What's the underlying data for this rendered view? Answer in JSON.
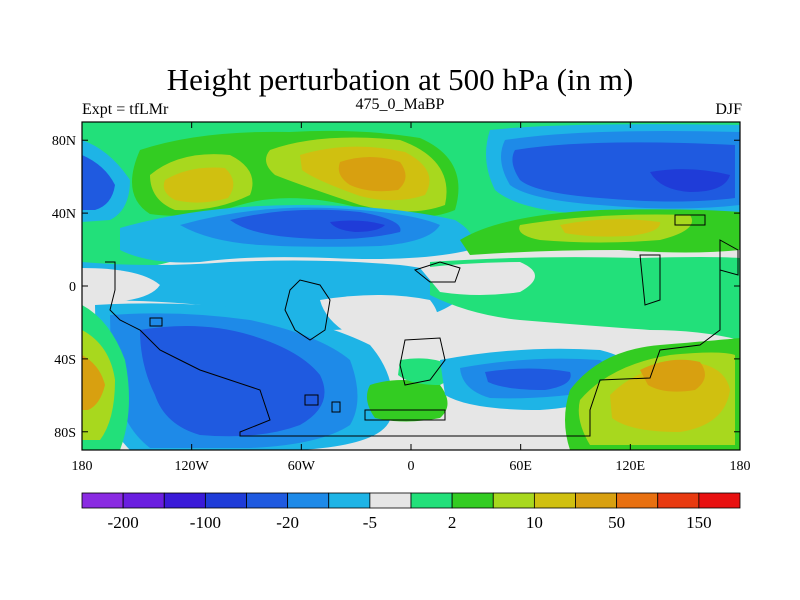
{
  "title": "Height perturbation at 500 hPa (in m)",
  "left_label": "Expt = tfLMr",
  "center_label": "475_0_MaBP",
  "right_label": "DJF",
  "map": {
    "lon_range": [
      -180,
      180
    ],
    "lat_range": [
      -90,
      90
    ],
    "xticks": [
      {
        "value": -180,
        "label": "180"
      },
      {
        "value": -120,
        "label": "120W"
      },
      {
        "value": -60,
        "label": "60W"
      },
      {
        "value": 0,
        "label": "0"
      },
      {
        "value": 60,
        "label": "60E"
      },
      {
        "value": 120,
        "label": "120E"
      },
      {
        "value": 180,
        "label": "180"
      }
    ],
    "yticks": [
      {
        "value": 80,
        "label": "80N"
      },
      {
        "value": 40,
        "label": "40N"
      },
      {
        "value": 0,
        "label": "0"
      },
      {
        "value": -40,
        "label": "40S"
      },
      {
        "value": -80,
        "label": "80S"
      }
    ]
  },
  "colorbar": {
    "colors": [
      "#8a2be2",
      "#6a1ee0",
      "#3a1ad8",
      "#1f3cd8",
      "#1f5ae0",
      "#1e8ae8",
      "#1eb4e6",
      "#e6e6e6",
      "#22e07a",
      "#33cc22",
      "#a8d81e",
      "#d0c010",
      "#d8a010",
      "#e87010",
      "#e83a10",
      "#e81010"
    ],
    "labels": [
      {
        "index": 1,
        "text": "-200"
      },
      {
        "index": 3,
        "text": "-100"
      },
      {
        "index": 5,
        "text": "-20"
      },
      {
        "index": 7,
        "text": "-5"
      },
      {
        "index": 9,
        "text": "2"
      },
      {
        "index": 11,
        "text": "10"
      },
      {
        "index": 13,
        "text": "50"
      },
      {
        "index": 15,
        "text": "150"
      }
    ]
  }
}
